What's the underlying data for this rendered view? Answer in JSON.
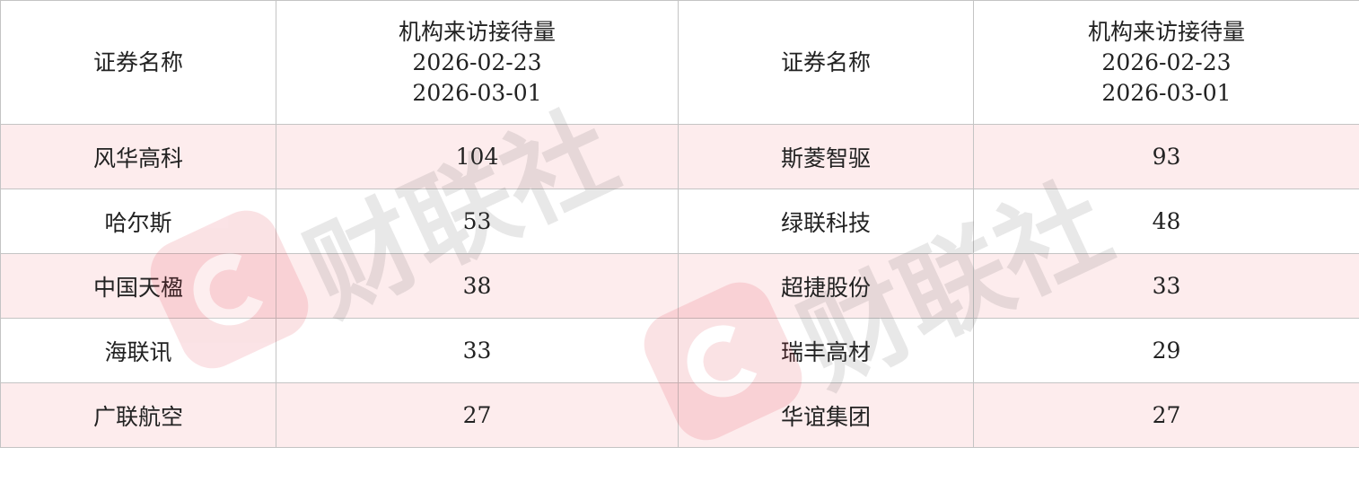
{
  "watermark": {
    "text": "财联社",
    "color": "#e0283a"
  },
  "colors": {
    "stripe": "#fdeced",
    "border": "#c4c4c4"
  },
  "header": {
    "name_label": "证券名称",
    "metric_label": "机构来访接待量",
    "date_start": "2026-02-23",
    "date_end": "2026-03-01"
  },
  "rows": [
    {
      "left_name": "风华高科",
      "left_value": "104",
      "right_name": "斯菱智驱",
      "right_value": "93"
    },
    {
      "left_name": "哈尔斯",
      "left_value": "53",
      "right_name": "绿联科技",
      "right_value": "48"
    },
    {
      "left_name": "中国天楹",
      "left_value": "38",
      "right_name": "超捷股份",
      "right_value": "33"
    },
    {
      "left_name": "海联讯",
      "left_value": "33",
      "right_name": "瑞丰高材",
      "right_value": "29"
    },
    {
      "left_name": "广联航空",
      "left_value": "27",
      "right_name": "华谊集团",
      "right_value": "27"
    }
  ]
}
